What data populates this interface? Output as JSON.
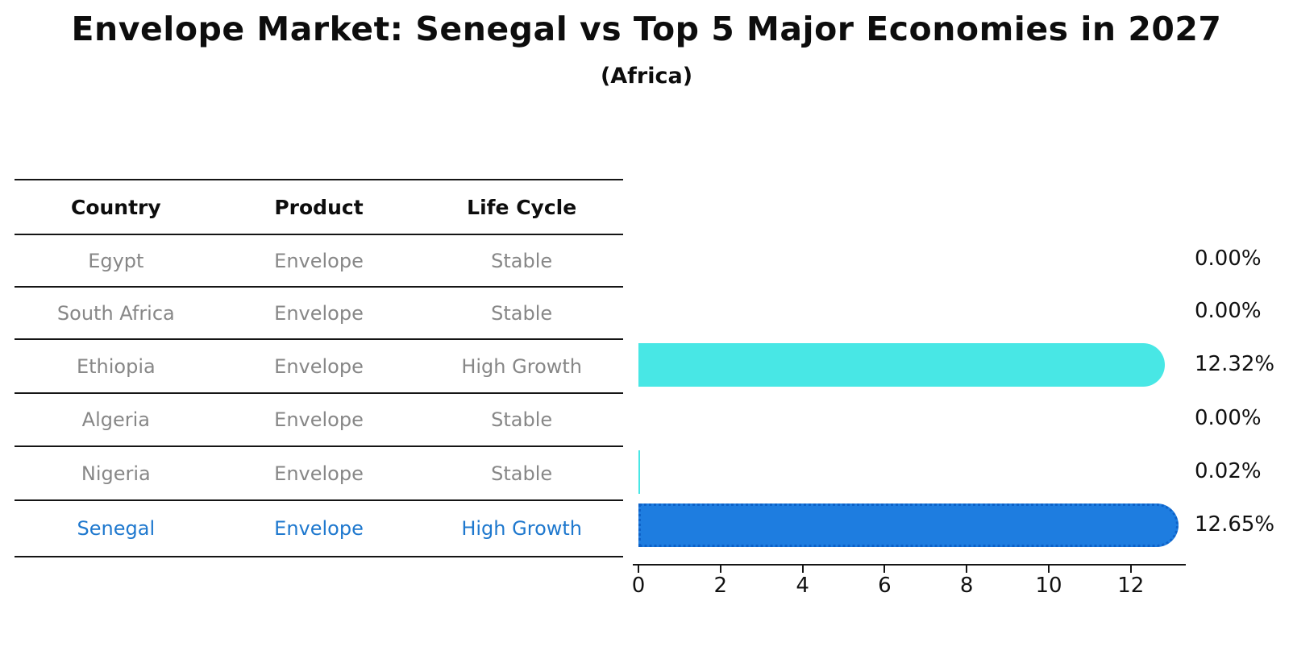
{
  "chart": {
    "title": "Envelope Market: Senegal vs Top 5 Major Economies in 2027",
    "subtitle": "(Africa)"
  },
  "table": {
    "headers": {
      "country": "Country",
      "product": "Product",
      "life_cycle": "Life Cycle"
    },
    "rows": [
      {
        "country": "Egypt",
        "product": "Envelope",
        "life_cycle": "Stable"
      },
      {
        "country": "South Africa",
        "product": "Envelope",
        "life_cycle": "Stable"
      },
      {
        "country": "Ethiopia",
        "product": "Envelope",
        "life_cycle": "High Growth"
      },
      {
        "country": "Algeria",
        "product": "Envelope",
        "life_cycle": "Stable"
      },
      {
        "country": "Nigeria",
        "product": "Envelope",
        "life_cycle": "Stable"
      },
      {
        "country": "Senegal",
        "product": "Envelope",
        "life_cycle": "High Growth"
      }
    ]
  },
  "chart_data": {
    "type": "bar",
    "orientation": "horizontal",
    "title": "Envelope Market: Senegal vs Top 5 Major Economies in 2027",
    "subtitle": "(Africa)",
    "categories": [
      "Egypt",
      "South Africa",
      "Ethiopia",
      "Algeria",
      "Nigeria",
      "Senegal"
    ],
    "values": [
      0.0,
      0.0,
      12.32,
      0.0,
      0.02,
      12.65
    ],
    "value_labels": [
      "0.00%",
      "0.00%",
      "12.32%",
      "0.00%",
      "0.02%",
      "12.65%"
    ],
    "x_ticks": [
      0,
      2,
      4,
      6,
      8,
      10,
      12
    ],
    "xlim": [
      0,
      13.3
    ],
    "xlabel": "",
    "ylabel": "",
    "grid": false,
    "legend": false,
    "bar_colors": [
      "#48e7e5",
      "#48e7e5",
      "#48e7e5",
      "#48e7e5",
      "#48e7e5",
      "#1e7de0"
    ],
    "highlight_index": 5,
    "highlight_border_color": "#0e62c8",
    "highlight_text_color": "#1e78ce",
    "table_text_color": "#878787"
  }
}
